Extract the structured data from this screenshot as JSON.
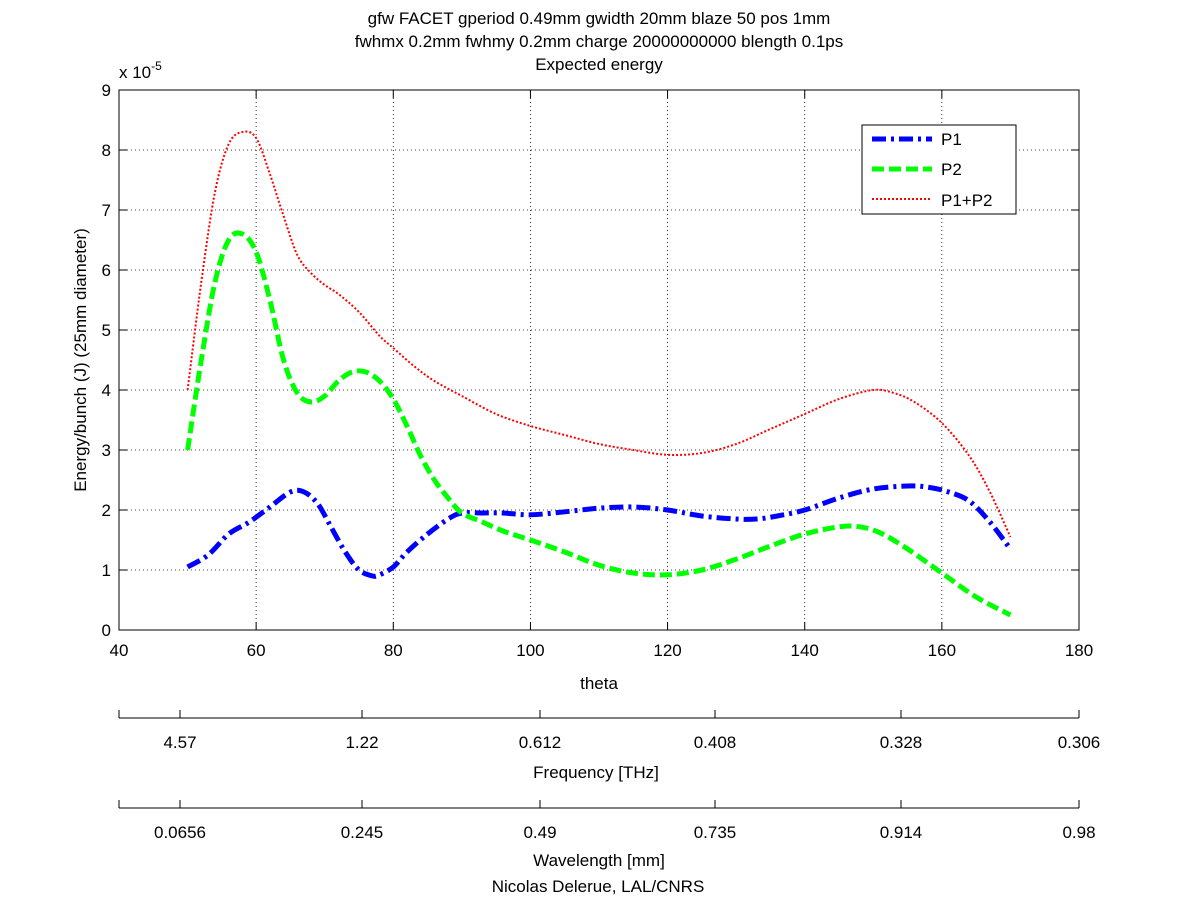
{
  "chart_data": {
    "type": "line",
    "title_lines": [
      "gfw FACET gperiod 0.49mm gwidth 20mm blaze 50 pos 1mm",
      "fwhmx 0.2mm fwhmy 0.2mm charge 20000000000 blength 0.1ps",
      "Expected energy"
    ],
    "xlabel": "theta",
    "ylabel": "Energy/bunch (J) (25mm diameter)",
    "y_exponent_label": "x 10",
    "y_exponent_power": "-5",
    "xlim": [
      40,
      180
    ],
    "ylim": [
      0,
      9
    ],
    "grid": true,
    "x_ticks": [
      "40",
      "60",
      "80",
      "100",
      "120",
      "140",
      "160",
      "180"
    ],
    "y_ticks": [
      "0",
      "1",
      "2",
      "3",
      "4",
      "5",
      "6",
      "7",
      "8",
      "9"
    ],
    "legend_position": "top-right",
    "series": [
      {
        "name": "P1",
        "color": "#0000ff",
        "style": "dash-dot",
        "x": [
          50,
          53,
          56,
          59,
          62,
          65,
          67,
          69,
          71,
          73,
          75,
          77,
          78,
          80,
          82,
          85,
          88,
          90,
          93,
          96,
          100,
          105,
          110,
          115,
          120,
          125,
          130,
          133,
          136,
          140,
          145,
          150,
          155,
          158,
          161,
          164,
          167,
          170
        ],
        "y": [
          1.05,
          1.25,
          1.6,
          1.8,
          2.05,
          2.3,
          2.3,
          2.1,
          1.7,
          1.3,
          1.0,
          0.9,
          0.92,
          1.05,
          1.3,
          1.6,
          1.85,
          1.95,
          1.95,
          1.95,
          1.92,
          1.97,
          2.03,
          2.05,
          2.0,
          1.9,
          1.85,
          1.85,
          1.9,
          2.0,
          2.2,
          2.35,
          2.4,
          2.38,
          2.3,
          2.15,
          1.8,
          1.35
        ]
      },
      {
        "name": "P2",
        "color": "#00ff00",
        "style": "dashed",
        "x": [
          50,
          52,
          54,
          56,
          58,
          60,
          62,
          64,
          66,
          68,
          70,
          72,
          74,
          76,
          78,
          80,
          82,
          84,
          86,
          88,
          90,
          93,
          96,
          100,
          105,
          110,
          115,
          120,
          125,
          130,
          135,
          140,
          145,
          148,
          151,
          155,
          160,
          165,
          170
        ],
        "y": [
          3.0,
          4.5,
          5.8,
          6.5,
          6.6,
          6.3,
          5.5,
          4.5,
          3.95,
          3.8,
          3.9,
          4.15,
          4.3,
          4.3,
          4.15,
          3.85,
          3.4,
          2.9,
          2.5,
          2.2,
          1.95,
          1.8,
          1.65,
          1.5,
          1.3,
          1.08,
          0.95,
          0.92,
          1.0,
          1.18,
          1.4,
          1.6,
          1.72,
          1.72,
          1.62,
          1.35,
          0.95,
          0.55,
          0.25
        ]
      },
      {
        "name": "P1+P2",
        "color": "#ff0000",
        "style": "dotted",
        "x": [
          50,
          52,
          54,
          56,
          58,
          60,
          62,
          64,
          66,
          68,
          70,
          72,
          75,
          78,
          80,
          83,
          86,
          90,
          95,
          100,
          105,
          110,
          115,
          120,
          125,
          130,
          135,
          140,
          145,
          150,
          153,
          156,
          160,
          164,
          167,
          170
        ],
        "y": [
          4.0,
          5.8,
          7.3,
          8.1,
          8.3,
          8.2,
          7.6,
          6.9,
          6.25,
          5.95,
          5.75,
          5.6,
          5.3,
          4.9,
          4.7,
          4.4,
          4.15,
          3.9,
          3.6,
          3.4,
          3.25,
          3.1,
          3.0,
          2.92,
          2.95,
          3.1,
          3.35,
          3.6,
          3.85,
          4.0,
          3.95,
          3.8,
          3.45,
          2.9,
          2.3,
          1.55
        ]
      }
    ],
    "secondary_axes": [
      {
        "label": "Frequency [THz]",
        "ticks": [
          "4.57",
          "1.22",
          "0.612",
          "0.408",
          "0.328",
          "0.306"
        ]
      },
      {
        "label": "Wavelength [mm]",
        "ticks": [
          "0.0656",
          "0.245",
          "0.49",
          "0.735",
          "0.914",
          "0.98"
        ]
      }
    ],
    "footer": "Nicolas Delerue, LAL/CNRS"
  }
}
